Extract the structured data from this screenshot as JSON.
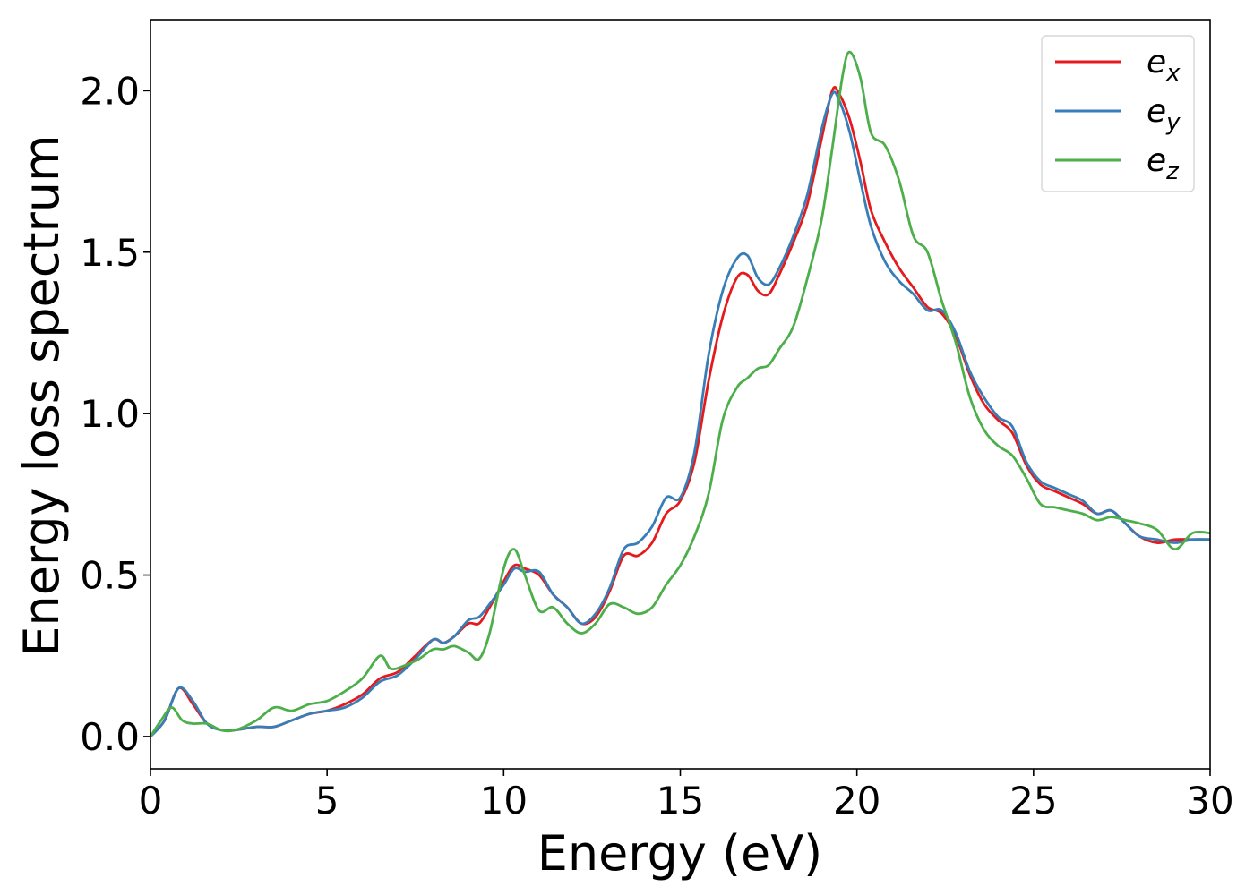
{
  "chart_data": {
    "type": "line",
    "xlabel": "Energy (eV)",
    "ylabel": "Energy loss spectrum",
    "xlim": [
      0,
      30
    ],
    "ylim": [
      -0.1,
      2.22
    ],
    "xticks": [
      0,
      5,
      10,
      15,
      20,
      25,
      30
    ],
    "xtick_labels": [
      "0",
      "5",
      "10",
      "15",
      "20",
      "25",
      "30"
    ],
    "yticks": [
      0.0,
      0.5,
      1.0,
      1.5,
      2.0
    ],
    "ytick_labels": [
      "0.0",
      "0.5",
      "1.0",
      "1.5",
      "2.0"
    ],
    "grid": false,
    "legend_position": "top-right",
    "series": [
      {
        "name": "e",
        "subscript": "x",
        "color": "#e41a1c",
        "x": [
          0,
          0.4,
          0.8,
          1.2,
          1.6,
          2.0,
          2.4,
          3.0,
          3.5,
          4.0,
          4.5,
          5.0,
          5.5,
          6.0,
          6.5,
          7.0,
          7.5,
          8.0,
          8.3,
          8.6,
          9.0,
          9.3,
          9.6,
          10.0,
          10.3,
          10.6,
          11.0,
          11.4,
          11.8,
          12.2,
          12.6,
          13.0,
          13.4,
          13.8,
          14.2,
          14.6,
          15.0,
          15.4,
          15.8,
          16.2,
          16.6,
          16.9,
          17.2,
          17.5,
          17.8,
          18.2,
          18.6,
          19.0,
          19.3,
          19.5,
          19.8,
          20.1,
          20.4,
          20.8,
          21.2,
          21.6,
          22.0,
          22.4,
          22.8,
          23.2,
          23.6,
          24.0,
          24.4,
          24.8,
          25.2,
          25.6,
          26.0,
          26.4,
          26.8,
          27.2,
          27.6,
          28.0,
          28.5,
          29.0,
          29.5,
          30.0
        ],
        "y": [
          0.0,
          0.05,
          0.15,
          0.1,
          0.04,
          0.02,
          0.02,
          0.03,
          0.03,
          0.05,
          0.07,
          0.08,
          0.1,
          0.13,
          0.18,
          0.2,
          0.25,
          0.3,
          0.29,
          0.31,
          0.35,
          0.35,
          0.4,
          0.48,
          0.53,
          0.52,
          0.5,
          0.44,
          0.4,
          0.35,
          0.37,
          0.45,
          0.56,
          0.56,
          0.6,
          0.69,
          0.73,
          0.85,
          1.1,
          1.3,
          1.42,
          1.43,
          1.38,
          1.37,
          1.43,
          1.53,
          1.65,
          1.85,
          2.0,
          1.99,
          1.91,
          1.78,
          1.63,
          1.53,
          1.45,
          1.39,
          1.33,
          1.31,
          1.24,
          1.12,
          1.03,
          0.98,
          0.94,
          0.84,
          0.78,
          0.76,
          0.74,
          0.72,
          0.69,
          0.7,
          0.66,
          0.62,
          0.6,
          0.61,
          0.61,
          0.61
        ]
      },
      {
        "name": "e",
        "subscript": "y",
        "color": "#377eb8",
        "x": [
          0,
          0.4,
          0.8,
          1.2,
          1.6,
          2.0,
          2.4,
          3.0,
          3.5,
          4.0,
          4.5,
          5.0,
          5.5,
          6.0,
          6.5,
          7.0,
          7.5,
          8.0,
          8.3,
          8.6,
          9.0,
          9.3,
          9.6,
          10.0,
          10.3,
          10.6,
          11.0,
          11.4,
          11.8,
          12.2,
          12.6,
          13.0,
          13.4,
          13.8,
          14.2,
          14.6,
          15.0,
          15.4,
          15.8,
          16.2,
          16.6,
          16.9,
          17.2,
          17.5,
          17.8,
          18.2,
          18.6,
          19.0,
          19.3,
          19.5,
          19.8,
          20.1,
          20.4,
          20.8,
          21.2,
          21.6,
          22.0,
          22.4,
          22.8,
          23.2,
          23.6,
          24.0,
          24.4,
          24.8,
          25.2,
          25.6,
          26.0,
          26.4,
          26.8,
          27.2,
          27.6,
          28.0,
          28.5,
          29.0,
          29.5,
          30.0
        ],
        "y": [
          0.0,
          0.05,
          0.15,
          0.11,
          0.04,
          0.02,
          0.02,
          0.03,
          0.03,
          0.05,
          0.07,
          0.08,
          0.09,
          0.12,
          0.17,
          0.19,
          0.24,
          0.3,
          0.29,
          0.31,
          0.36,
          0.37,
          0.41,
          0.47,
          0.52,
          0.51,
          0.51,
          0.44,
          0.4,
          0.35,
          0.38,
          0.46,
          0.58,
          0.6,
          0.65,
          0.74,
          0.74,
          0.88,
          1.18,
          1.38,
          1.48,
          1.49,
          1.42,
          1.4,
          1.45,
          1.55,
          1.68,
          1.88,
          1.99,
          1.97,
          1.87,
          1.72,
          1.58,
          1.47,
          1.41,
          1.37,
          1.32,
          1.32,
          1.25,
          1.13,
          1.05,
          0.99,
          0.96,
          0.85,
          0.79,
          0.77,
          0.75,
          0.73,
          0.69,
          0.7,
          0.66,
          0.62,
          0.61,
          0.6,
          0.61,
          0.61
        ]
      },
      {
        "name": "e",
        "subscript": "z",
        "color": "#4daf4a",
        "x": [
          0,
          0.3,
          0.6,
          0.9,
          1.2,
          1.6,
          2.0,
          2.4,
          3.0,
          3.5,
          4.0,
          4.5,
          5.0,
          5.5,
          6.0,
          6.5,
          6.8,
          7.2,
          7.6,
          8.0,
          8.3,
          8.6,
          9.0,
          9.3,
          9.6,
          10.0,
          10.3,
          10.6,
          11.0,
          11.4,
          11.8,
          12.2,
          12.6,
          13.0,
          13.4,
          13.8,
          14.2,
          14.6,
          15.0,
          15.4,
          15.8,
          16.2,
          16.6,
          16.9,
          17.2,
          17.5,
          17.8,
          18.2,
          18.6,
          19.0,
          19.3,
          19.6,
          19.8,
          20.1,
          20.4,
          20.8,
          21.2,
          21.6,
          22.0,
          22.4,
          22.8,
          23.2,
          23.6,
          24.0,
          24.4,
          24.8,
          25.2,
          25.6,
          26.0,
          26.4,
          26.8,
          27.2,
          27.6,
          28.0,
          28.5,
          29.0,
          29.5,
          30.0
        ],
        "y": [
          0.0,
          0.05,
          0.09,
          0.05,
          0.04,
          0.04,
          0.02,
          0.02,
          0.05,
          0.09,
          0.08,
          0.1,
          0.11,
          0.14,
          0.18,
          0.25,
          0.21,
          0.22,
          0.24,
          0.27,
          0.27,
          0.28,
          0.26,
          0.24,
          0.32,
          0.52,
          0.58,
          0.5,
          0.39,
          0.4,
          0.35,
          0.32,
          0.35,
          0.41,
          0.4,
          0.38,
          0.4,
          0.47,
          0.53,
          0.62,
          0.75,
          0.98,
          1.08,
          1.11,
          1.14,
          1.15,
          1.2,
          1.27,
          1.42,
          1.6,
          1.82,
          2.05,
          2.12,
          2.04,
          1.87,
          1.83,
          1.72,
          1.55,
          1.5,
          1.35,
          1.22,
          1.05,
          0.95,
          0.9,
          0.87,
          0.8,
          0.72,
          0.71,
          0.7,
          0.69,
          0.67,
          0.68,
          0.67,
          0.66,
          0.64,
          0.58,
          0.63,
          0.63
        ]
      }
    ]
  }
}
